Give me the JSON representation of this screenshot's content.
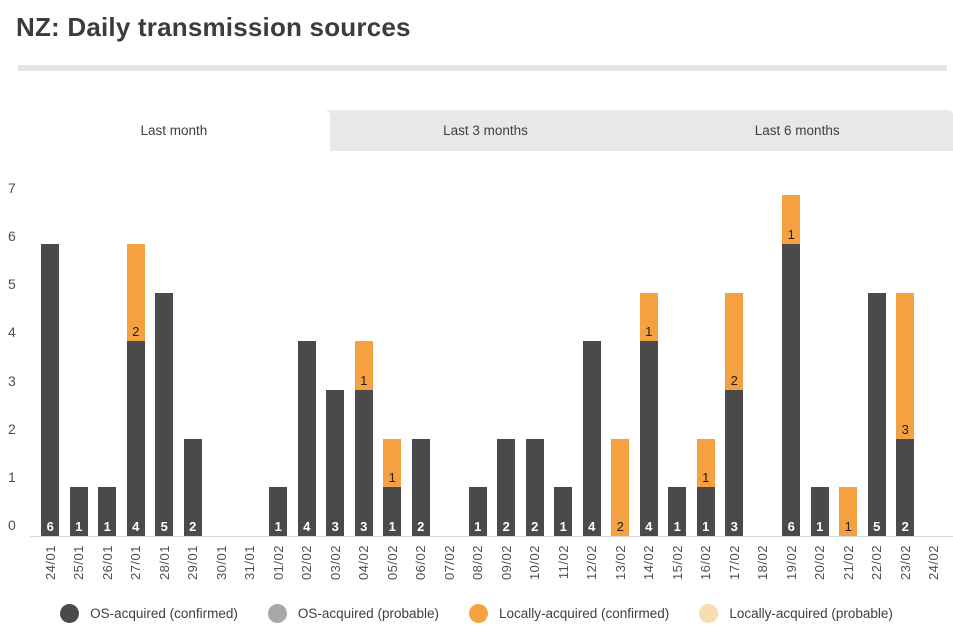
{
  "header": {
    "title": "NZ: Daily transmission sources"
  },
  "tabs": {
    "items": [
      {
        "label": "Last month",
        "active": true
      },
      {
        "label": "Last 3 months",
        "active": false
      },
      {
        "label": "Last 6 months",
        "active": false
      }
    ]
  },
  "chart_data": {
    "type": "bar",
    "stacked": true,
    "title": "NZ: Daily transmission sources",
    "categories": [
      "24/01",
      "25/01",
      "26/01",
      "27/01",
      "28/01",
      "29/01",
      "30/01",
      "31/01",
      "01/02",
      "02/02",
      "03/02",
      "04/02",
      "05/02",
      "06/02",
      "07/02",
      "08/02",
      "09/02",
      "10/02",
      "11/02",
      "12/02",
      "13/02",
      "14/02",
      "15/02",
      "16/02",
      "17/02",
      "18/02",
      "19/02",
      "20/02",
      "21/02",
      "22/02",
      "23/02",
      "24/02"
    ],
    "series": [
      {
        "name": "OS-acquired (confirmed)",
        "color": "#4a4a4a",
        "label_color": "#ffffff",
        "label_bold": true,
        "values": [
          6,
          1,
          1,
          4,
          5,
          2,
          0,
          0,
          1,
          4,
          3,
          3,
          1,
          2,
          0,
          1,
          2,
          2,
          1,
          4,
          0,
          4,
          1,
          1,
          3,
          0,
          6,
          1,
          0,
          5,
          2,
          0
        ]
      },
      {
        "name": "Locally-acquired (confirmed)",
        "color": "#f5a142",
        "label_color": "#1f1f1f",
        "label_bold": false,
        "values": [
          0,
          0,
          0,
          2,
          0,
          0,
          0,
          0,
          0,
          0,
          0,
          1,
          1,
          0,
          0,
          0,
          0,
          0,
          0,
          0,
          2,
          1,
          0,
          1,
          2,
          0,
          1,
          0,
          1,
          0,
          3,
          0
        ]
      }
    ],
    "legend": [
      {
        "label": "OS-acquired (confirmed)",
        "color": "#4a4a4a"
      },
      {
        "label": "OS-acquired (probable)",
        "color": "#a8a8a8"
      },
      {
        "label": "Locally-acquired (confirmed)",
        "color": "#f5a142"
      },
      {
        "label": "Locally-acquired (probable)",
        "color": "#f8dcb2"
      }
    ],
    "ylim": [
      0,
      7
    ],
    "yticks": [
      0,
      1,
      2,
      3,
      4,
      5,
      6,
      7
    ],
    "grid": false,
    "legend_position": "bottom"
  },
  "colors": {
    "bar_dark": "#4a4a4a",
    "bar_orange": "#f5a142",
    "tab_background": "#e8e8e8",
    "divider": "#e6e6e6",
    "axis_text": "#4f4f4f"
  }
}
